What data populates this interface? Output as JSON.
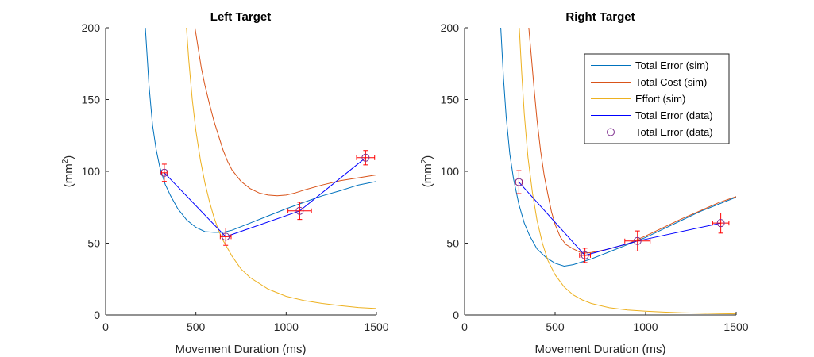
{
  "colors": {
    "total_error_sim": "#0072BD",
    "total_cost_sim": "#D95319",
    "effort_sim": "#EDB120",
    "total_error_data_line": "#0000FF",
    "total_error_data_marker": "#7E2F8E",
    "error_bar": "#FF0000",
    "axis": "#262626",
    "legend_border": "#262626"
  },
  "legend": {
    "entries": [
      {
        "label": "Total Error (sim)",
        "kind": "line",
        "color_key": "total_error_sim"
      },
      {
        "label": "Total Cost (sim)",
        "kind": "line",
        "color_key": "total_cost_sim"
      },
      {
        "label": "Effort (sim)",
        "kind": "line",
        "color_key": "effort_sim"
      },
      {
        "label": "Total Error (data)",
        "kind": "line",
        "color_key": "total_error_data_line"
      },
      {
        "label": "Total Error (data)",
        "kind": "marker",
        "color_key": "total_error_data_marker"
      }
    ]
  },
  "chart_data": [
    {
      "type": "line",
      "title": "Left Target",
      "xlabel": "Movement Duration (ms)",
      "ylabel_main": "(mm",
      "ylabel_sup": "2",
      "ylabel_close": ")",
      "xlim": [
        0,
        1500
      ],
      "ylim": [
        0,
        200
      ],
      "xticks": [
        0,
        500,
        1000,
        1500
      ],
      "yticks": [
        0,
        50,
        100,
        150,
        200
      ],
      "series": [
        {
          "name": "Total Error (sim)",
          "color_key": "total_error_sim",
          "x": [
            220,
            240,
            260,
            280,
            300,
            330,
            360,
            400,
            450,
            500,
            550,
            600,
            650,
            700,
            800,
            900,
            1000,
            1100,
            1200,
            1300,
            1400,
            1500
          ],
          "y": [
            200,
            160,
            132,
            115,
            103,
            91,
            83,
            74,
            66,
            61,
            58,
            57.5,
            57.5,
            59,
            64,
            69,
            74,
            78.5,
            83,
            86.5,
            90.5,
            93
          ]
        },
        {
          "name": "Total Cost (sim)",
          "color_key": "total_cost_sim",
          "x": [
            495,
            510,
            530,
            550,
            575,
            600,
            625,
            650,
            675,
            700,
            750,
            800,
            850,
            900,
            950,
            1000,
            1050,
            1100,
            1200,
            1300,
            1400,
            1500
          ],
          "y": [
            200,
            188,
            172,
            160,
            147,
            135,
            125,
            115,
            107,
            101,
            93,
            88,
            85,
            83.5,
            83,
            83.5,
            85,
            87,
            90.5,
            93.5,
            95.5,
            97.5
          ]
        },
        {
          "name": "Effort (sim)",
          "color_key": "effort_sim",
          "x": [
            448,
            460,
            480,
            500,
            525,
            550,
            575,
            600,
            625,
            650,
            700,
            750,
            800,
            900,
            1000,
            1100,
            1200,
            1300,
            1400,
            1500
          ],
          "y": [
            200,
            178,
            150,
            128,
            108,
            92,
            79,
            68,
            59,
            52,
            41,
            32,
            26,
            18,
            13,
            10,
            8,
            6.5,
            5.2,
            4.5
          ]
        }
      ],
      "data_points": {
        "name": "Total Error (data)",
        "x": [
          325,
          665,
          1075,
          1440
        ],
        "y": [
          99,
          54.5,
          72.5,
          109.5
        ],
        "x_err": [
          15,
          30,
          65,
          50
        ],
        "y_err": [
          6,
          6,
          6,
          5
        ]
      }
    },
    {
      "type": "line",
      "title": "Right Target",
      "xlabel": "Movement Duration (ms)",
      "ylabel_main": "(mm",
      "ylabel_sup": "2",
      "ylabel_close": ")",
      "xlim": [
        0,
        1500
      ],
      "ylim": [
        0,
        200
      ],
      "xticks": [
        0,
        500,
        1000,
        1500
      ],
      "yticks": [
        0,
        50,
        100,
        150,
        200
      ],
      "series": [
        {
          "name": "Total Error (sim)",
          "color_key": "total_error_sim",
          "x": [
            200,
            215,
            230,
            250,
            270,
            300,
            330,
            360,
            400,
            450,
            500,
            550,
            600,
            650,
            700,
            800,
            900,
            1000,
            1100,
            1200,
            1300,
            1400,
            1500
          ],
          "y": [
            200,
            165,
            138,
            112,
            95,
            77,
            64,
            55,
            46,
            40,
            36,
            34,
            35,
            37,
            39,
            44,
            49,
            54,
            60,
            66,
            72,
            77,
            82
          ]
        },
        {
          "name": "Total Cost (sim)",
          "color_key": "total_cost_sim",
          "x": [
            355,
            370,
            385,
            400,
            420,
            440,
            460,
            480,
            500,
            530,
            560,
            600,
            650,
            700,
            800,
            900,
            1000,
            1100,
            1200,
            1300,
            1400,
            1500
          ],
          "y": [
            200,
            178,
            156,
            136,
            114,
            97,
            84,
            72,
            63,
            54,
            49,
            46,
            43,
            43.5,
            46,
            49.5,
            55,
            61,
            67,
            72.5,
            78,
            82.5
          ]
        },
        {
          "name": "Effort (sim)",
          "color_key": "effort_sim",
          "x": [
            302,
            315,
            330,
            350,
            375,
            400,
            430,
            460,
            500,
            550,
            600,
            650,
            700,
            800,
            900,
            1000,
            1100,
            1200,
            1300,
            1400,
            1500
          ],
          "y": [
            200,
            170,
            140,
            110,
            85,
            66,
            50,
            38,
            28,
            19.5,
            14,
            10.5,
            8,
            5,
            3.5,
            2.6,
            2,
            1.5,
            1.2,
            1,
            0.8
          ]
        }
      ],
      "data_points": {
        "name": "Total Error (data)",
        "x": [
          300,
          665,
          955,
          1415
        ],
        "y": [
          92.5,
          41.5,
          51.5,
          64
        ],
        "x_err": [
          18,
          30,
          70,
          45
        ],
        "y_err": [
          8,
          5,
          7,
          7
        ]
      }
    }
  ]
}
